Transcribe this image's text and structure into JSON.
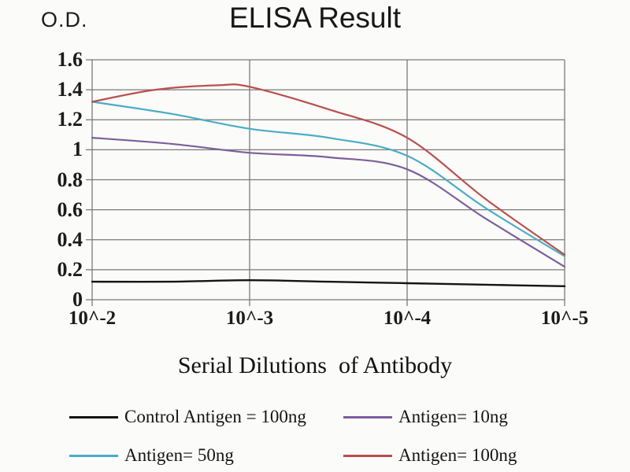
{
  "header": {
    "od_label": "O.D.",
    "title": "ELISA Result"
  },
  "chart_data": {
    "type": "line",
    "title": "ELISA Result",
    "ylabel": "O.D.",
    "xlabel": "Serial Dilutions  of Antibody",
    "x_tick_labels": [
      "10^-2",
      "10^-3",
      "10^-4",
      "10^-5"
    ],
    "x_decades": [
      0,
      1,
      2,
      3
    ],
    "y_tick_values": [
      0,
      0.2,
      0.4,
      0.6,
      0.8,
      1,
      1.2,
      1.4,
      1.6
    ],
    "y_tick_labels": [
      "0",
      "0.2",
      "0.4",
      "0.6",
      "0.8",
      "1",
      "1.2",
      "1.4",
      "1.6"
    ],
    "ylim": [
      0,
      1.6
    ],
    "grid": true,
    "legend_position": "bottom",
    "grid_color": "#7a7a7a",
    "series": [
      {
        "name": "Control Antigen = 100ng",
        "color": "#141414",
        "x": [
          0,
          0.5,
          1,
          1.5,
          2,
          2.5,
          3
        ],
        "values": [
          0.12,
          0.12,
          0.13,
          0.12,
          0.11,
          0.1,
          0.09
        ]
      },
      {
        "name": "Antigen= 10ng",
        "color": "#7c5e9d",
        "x": [
          0,
          0.5,
          1,
          1.5,
          2,
          2.5,
          3
        ],
        "values": [
          1.08,
          1.04,
          0.98,
          0.95,
          0.87,
          0.54,
          0.22
        ]
      },
      {
        "name": "Antigen= 50ng",
        "color": "#4bacc6",
        "x": [
          0,
          0.5,
          1,
          1.5,
          2,
          2.5,
          3
        ],
        "values": [
          1.32,
          1.24,
          1.14,
          1.08,
          0.96,
          0.61,
          0.29
        ]
      },
      {
        "name": "Antigen= 100ng",
        "color": "#b8504d",
        "x": [
          0,
          0.4,
          0.8,
          1,
          1.5,
          2,
          2.5,
          3
        ],
        "values": [
          1.32,
          1.4,
          1.43,
          1.42,
          1.27,
          1.08,
          0.67,
          0.3
        ]
      }
    ]
  }
}
